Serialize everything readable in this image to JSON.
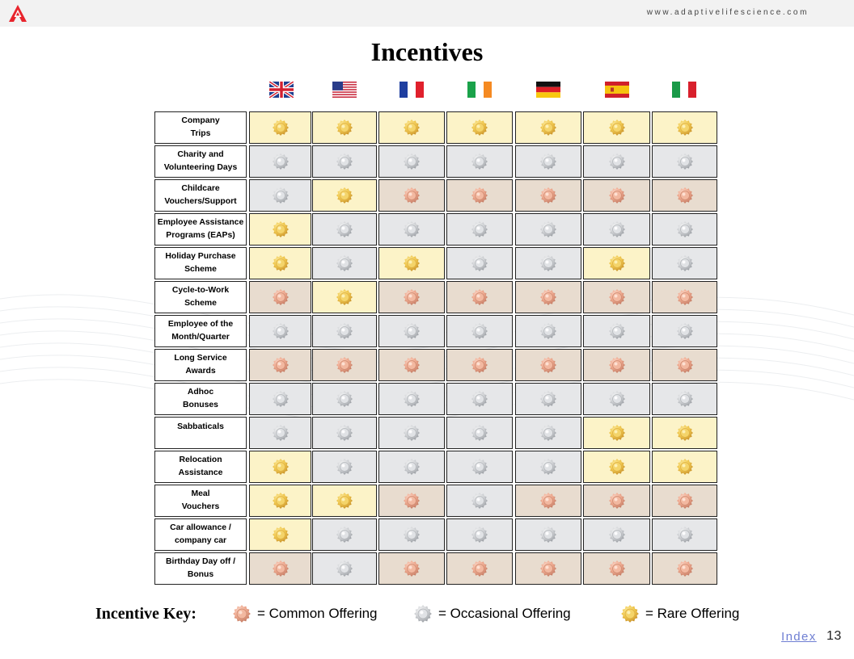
{
  "header": {
    "website": "www.adaptivelifescience.com"
  },
  "title": "Incentives",
  "countries": [
    "United Kingdom",
    "United States",
    "France",
    "Ireland",
    "Germany",
    "Spain",
    "Italy"
  ],
  "colors": {
    "rare": "#fcf3c8",
    "occasional": "#e6e7e9",
    "common": "#e8dccf",
    "brand_red": "#e8242c",
    "link": "#6f7fd3"
  },
  "rows": [
    {
      "label": "Company\nTrips",
      "levels": [
        "rare",
        "rare",
        "rare",
        "rare",
        "rare",
        "rare",
        "rare"
      ]
    },
    {
      "label": "Charity and\nVolunteering Days",
      "levels": [
        "occasional",
        "occasional",
        "occasional",
        "occasional",
        "occasional",
        "occasional",
        "occasional"
      ]
    },
    {
      "label": "Childcare\nVouchers/Support",
      "levels": [
        "occasional",
        "rare",
        "common",
        "common",
        "common",
        "common",
        "common"
      ]
    },
    {
      "label": "Employee Assistance\nPrograms (EAPs)",
      "levels": [
        "rare",
        "occasional",
        "occasional",
        "occasional",
        "occasional",
        "occasional",
        "occasional"
      ]
    },
    {
      "label": "Holiday Purchase\nScheme",
      "levels": [
        "rare",
        "occasional",
        "rare",
        "occasional",
        "occasional",
        "rare",
        "occasional"
      ]
    },
    {
      "label": "Cycle-to-Work\nScheme",
      "levels": [
        "common",
        "rare",
        "common",
        "common",
        "common",
        "common",
        "common"
      ]
    },
    {
      "label": "Employee of the\nMonth/Quarter",
      "levels": [
        "occasional",
        "occasional",
        "occasional",
        "occasional",
        "occasional",
        "occasional",
        "occasional"
      ]
    },
    {
      "label": "Long Service\nAwards",
      "levels": [
        "common",
        "common",
        "common",
        "common",
        "common",
        "common",
        "common"
      ]
    },
    {
      "label": "Adhoc\nBonuses",
      "levels": [
        "occasional",
        "occasional",
        "occasional",
        "occasional",
        "occasional",
        "occasional",
        "occasional"
      ]
    },
    {
      "label": "Sabbaticals",
      "levels": [
        "occasional",
        "occasional",
        "occasional",
        "occasional",
        "occasional",
        "rare",
        "rare"
      ]
    },
    {
      "label": "Relocation\nAssistance",
      "levels": [
        "rare",
        "occasional",
        "occasional",
        "occasional",
        "occasional",
        "rare",
        "rare"
      ]
    },
    {
      "label": "Meal\nVouchers",
      "levels": [
        "rare",
        "rare",
        "common",
        "occasional",
        "common",
        "common",
        "common"
      ]
    },
    {
      "label": "Car allowance /\ncompany car",
      "levels": [
        "rare",
        "occasional",
        "occasional",
        "occasional",
        "occasional",
        "occasional",
        "occasional"
      ]
    },
    {
      "label": "Birthday Day off /\nBonus",
      "levels": [
        "common",
        "occasional",
        "common",
        "common",
        "common",
        "common",
        "common"
      ]
    }
  ],
  "key": {
    "title": "Incentive Key:",
    "common": "= Common Offering",
    "occasional": "= Occasional Offering",
    "rare": "= Rare Offering"
  },
  "footer": {
    "index_link": "Index",
    "page_number": "13"
  }
}
